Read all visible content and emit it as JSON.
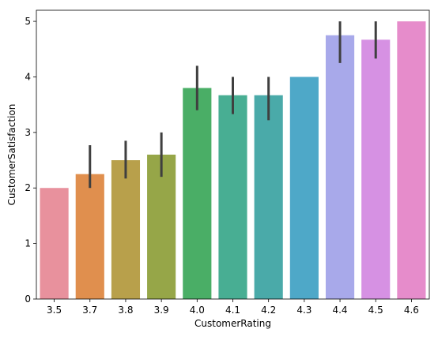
{
  "chart_data": {
    "type": "bar",
    "xlabel": "CustomerRating",
    "ylabel": "CustomerSatisfaction",
    "categories": [
      "3.5",
      "3.7",
      "3.8",
      "3.9",
      "4.0",
      "4.1",
      "4.2",
      "4.3",
      "4.4",
      "4.5",
      "4.6"
    ],
    "values": [
      2.0,
      2.25,
      2.5,
      2.6,
      3.8,
      3.67,
      3.67,
      4.0,
      4.75,
      4.67,
      5.0
    ],
    "error_low": [
      2.0,
      2.0,
      2.17,
      2.2,
      3.4,
      3.33,
      3.22,
      4.0,
      4.25,
      4.33,
      5.0
    ],
    "error_high": [
      2.0,
      2.77,
      2.85,
      3.0,
      4.2,
      4.0,
      4.0,
      4.0,
      5.0,
      5.0,
      5.0
    ],
    "colors": [
      "#e8919d",
      "#e08f4e",
      "#b8a04b",
      "#96a648",
      "#4aae66",
      "#48ae93",
      "#4aaaa9",
      "#4ea8c8",
      "#a8a9ea",
      "#d691e3",
      "#e68ccb"
    ],
    "ylim": [
      0,
      5.2
    ],
    "yticks": [
      "0",
      "1",
      "2",
      "3",
      "4",
      "5"
    ],
    "grid": false,
    "legend": false
  }
}
